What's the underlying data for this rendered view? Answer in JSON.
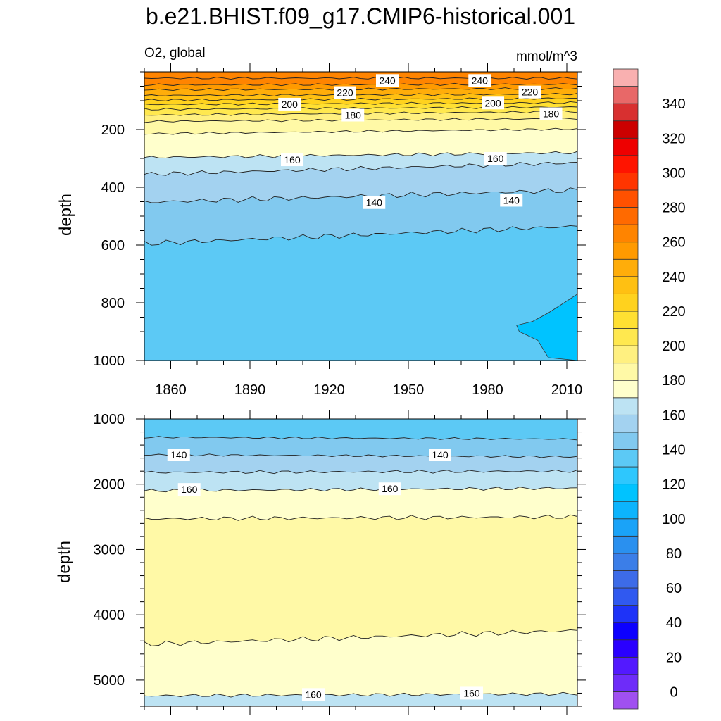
{
  "chart_data": {
    "type": "contour",
    "title": "b.e21.BHIST.f09_g17.CMIP6-historical.001",
    "variable_label": "O2, global",
    "units": "mmol/m^3",
    "ylabel": "depth",
    "xticks": [
      1860,
      1890,
      1920,
      1950,
      1980,
      2010
    ],
    "xlim": [
      1850,
      2014
    ],
    "upper_panel": {
      "ylim": [
        0,
        1000
      ],
      "yticks": [
        200,
        400,
        600,
        800,
        1000
      ],
      "contour_labels": [
        {
          "text": "240",
          "year": 1942,
          "depth": 30
        },
        {
          "text": "240",
          "year": 1977,
          "depth": 30
        },
        {
          "text": "220",
          "year": 1926,
          "depth": 72
        },
        {
          "text": "220",
          "year": 1996,
          "depth": 70
        },
        {
          "text": "200",
          "year": 1905,
          "depth": 112
        },
        {
          "text": "200",
          "year": 1982,
          "depth": 108
        },
        {
          "text": "180",
          "year": 1929,
          "depth": 150
        },
        {
          "text": "180",
          "year": 2004,
          "depth": 145
        },
        {
          "text": "160",
          "year": 1906,
          "depth": 305
        },
        {
          "text": "160",
          "year": 1983,
          "depth": 300
        },
        {
          "text": "140",
          "year": 1937,
          "depth": 453
        },
        {
          "text": "140",
          "year": 1989,
          "depth": 445
        }
      ]
    },
    "lower_panel": {
      "ylim": [
        1000,
        5400
      ],
      "yticks": [
        1000,
        2000,
        3000,
        4000,
        5000
      ],
      "contour_labels": [
        {
          "text": "140",
          "year": 1863,
          "depth": 1550
        },
        {
          "text": "140",
          "year": 1962,
          "depth": 1550
        },
        {
          "text": "160",
          "year": 1867,
          "depth": 2080
        },
        {
          "text": "160",
          "year": 1943,
          "depth": 2070
        },
        {
          "text": "160",
          "year": 1914,
          "depth": 5220
        },
        {
          "text": "160",
          "year": 1974,
          "depth": 5200
        }
      ]
    },
    "colorbar": {
      "levels": [
        0,
        10,
        20,
        30,
        40,
        50,
        60,
        70,
        80,
        90,
        100,
        110,
        120,
        130,
        140,
        150,
        160,
        170,
        180,
        190,
        200,
        210,
        220,
        230,
        240,
        250,
        260,
        270,
        280,
        290,
        300,
        310,
        320,
        330,
        340,
        350
      ],
      "tick_labels": [
        "0",
        "20",
        "40",
        "60",
        "80",
        "100",
        "120",
        "140",
        "160",
        "180",
        "200",
        "220",
        "240",
        "260",
        "280",
        "300",
        "320",
        "340"
      ],
      "colors": [
        "#a050f0",
        "#6e2cf9",
        "#5319ff",
        "#2a00ff",
        "#0c00ff",
        "#1e33f8",
        "#3059f0",
        "#3d6be8",
        "#3b7ee8",
        "#2a90ef",
        "#1aa3f8",
        "#0cb4fd",
        "#00c3ff",
        "#2ec7fd",
        "#5cc9f5",
        "#81c9ef",
        "#a3d2f0",
        "#bde3f3",
        "#ffffcc",
        "#fff9a6",
        "#fff080",
        "#ffe84f",
        "#ffe032",
        "#ffd21e",
        "#ffc012",
        "#ffad0a",
        "#ff9a00",
        "#ff8400",
        "#ff6a00",
        "#ff5100",
        "#ff3500",
        "#ff1400",
        "#ee0000",
        "#cc0000",
        "#d83030",
        "#e86868",
        "#f9b0b0"
      ]
    }
  }
}
